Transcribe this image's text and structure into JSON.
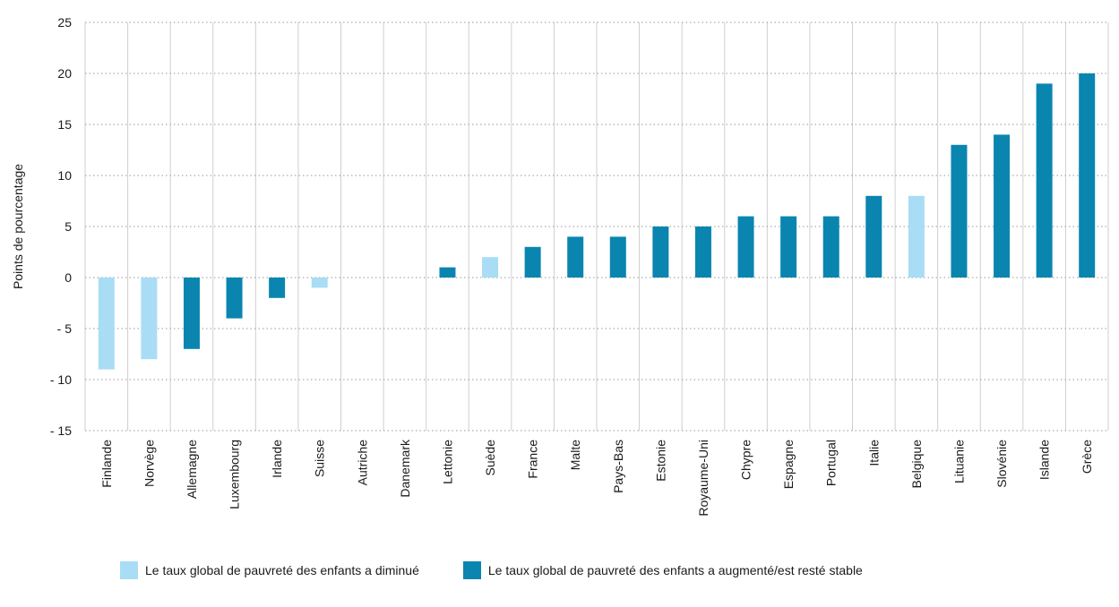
{
  "chart_data": {
    "type": "bar",
    "title": "",
    "xlabel": "",
    "ylabel": "Points de pourcentage",
    "ylim": [
      -15,
      25
    ],
    "yticks": [
      25,
      20,
      15,
      10,
      5,
      0,
      -5,
      -10,
      -15
    ],
    "ytick_labels": [
      "25",
      "20",
      "15",
      "10",
      "5",
      "0",
      "- 5",
      "- 10",
      "- 15"
    ],
    "grid": true,
    "legend_position": "bottom",
    "categories": [
      "Finlande",
      "Norvège",
      "Allemagne",
      "Luxembourg",
      "Irlande",
      "Suisse",
      "Autriche",
      "Danemark",
      "Lettonie",
      "Suède",
      "France",
      "Malte",
      "Pays-Bas",
      "Estonie",
      "Royaume-Uni",
      "Chypre",
      "Espagne",
      "Portugal",
      "Italie",
      "Belgique",
      "Lituanie",
      "Slovénie",
      "Islande",
      "Grèce"
    ],
    "series": [
      {
        "name": "Le taux global de pauvreté des enfants a diminué",
        "color": "#a8ddf5",
        "values": [
          -9,
          -8,
          null,
          null,
          null,
          -1,
          null,
          null,
          null,
          2,
          null,
          null,
          null,
          null,
          null,
          null,
          null,
          null,
          null,
          8,
          null,
          null,
          null,
          null
        ]
      },
      {
        "name": "Le taux global de pauvreté des enfants a augmenté/est resté stable",
        "color": "#0a85b0",
        "values": [
          null,
          null,
          -7,
          -4,
          -2,
          null,
          null,
          null,
          1,
          null,
          3,
          4,
          4,
          5,
          5,
          6,
          6,
          6,
          8,
          null,
          13,
          14,
          19,
          20
        ]
      }
    ]
  }
}
